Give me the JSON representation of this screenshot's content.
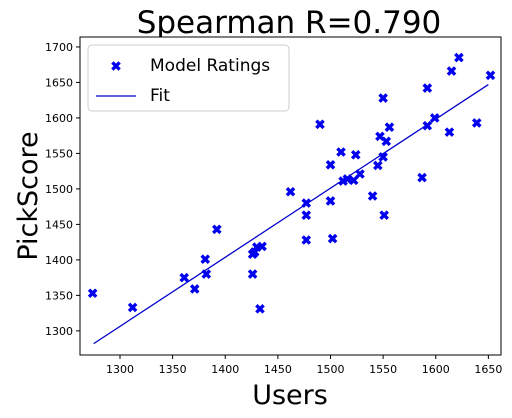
{
  "chart_data": {
    "type": "scatter",
    "title": "Spearman R=0.790",
    "xlabel": "Users",
    "ylabel": "PickScore",
    "xlim": [
      1262,
      1662
    ],
    "ylim": [
      1266,
      1714
    ],
    "xticks": [
      1300,
      1350,
      1400,
      1450,
      1500,
      1550,
      1600,
      1650
    ],
    "yticks": [
      1300,
      1350,
      1400,
      1450,
      1500,
      1550,
      1600,
      1650,
      1700
    ],
    "grid": false,
    "legend_position": "top-left",
    "marker_color": "#0000ee",
    "line_color": "#0000cc",
    "series": [
      {
        "name": "Model Ratings",
        "kind": "scatter",
        "points": [
          [
            1274,
            1353
          ],
          [
            1312,
            1333
          ],
          [
            1361,
            1375
          ],
          [
            1371,
            1359
          ],
          [
            1381,
            1401
          ],
          [
            1382,
            1380
          ],
          [
            1392,
            1443
          ],
          [
            1426,
            1380
          ],
          [
            1426,
            1408
          ],
          [
            1428,
            1411
          ],
          [
            1430,
            1418
          ],
          [
            1433,
            1331
          ],
          [
            1435,
            1419
          ],
          [
            1462,
            1496
          ],
          [
            1477,
            1480
          ],
          [
            1477,
            1463
          ],
          [
            1477,
            1428
          ],
          [
            1490,
            1591
          ],
          [
            1500,
            1534
          ],
          [
            1500,
            1483
          ],
          [
            1502,
            1430
          ],
          [
            1510,
            1552
          ],
          [
            1512,
            1511
          ],
          [
            1516,
            1514
          ],
          [
            1522,
            1512
          ],
          [
            1524,
            1548
          ],
          [
            1528,
            1521
          ],
          [
            1540,
            1490
          ],
          [
            1545,
            1533
          ],
          [
            1547,
            1574
          ],
          [
            1550,
            1628
          ],
          [
            1550,
            1545
          ],
          [
            1551,
            1463
          ],
          [
            1553,
            1567
          ],
          [
            1556,
            1587
          ],
          [
            1587,
            1516
          ],
          [
            1592,
            1589
          ],
          [
            1592,
            1642
          ],
          [
            1599,
            1600
          ],
          [
            1613,
            1580
          ],
          [
            1615,
            1666
          ],
          [
            1622,
            1685
          ],
          [
            1639,
            1593
          ],
          [
            1652,
            1660
          ]
        ]
      },
      {
        "name": "Fit",
        "kind": "line",
        "points": [
          [
            1275,
            1282
          ],
          [
            1650,
            1647
          ]
        ]
      }
    ]
  }
}
